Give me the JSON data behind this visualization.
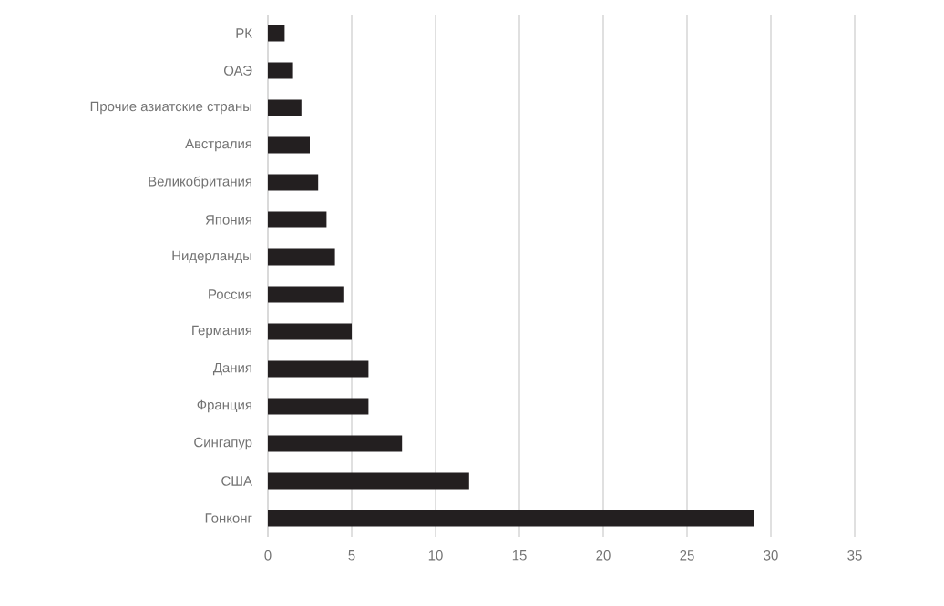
{
  "chart_data": {
    "type": "bar",
    "orientation": "horizontal",
    "categories": [
      "РК",
      "ОАЭ",
      "Прочие азиатские страны",
      "Австралия",
      "Великобритания",
      "Япония",
      "Нидерланды",
      "Россия",
      "Германия",
      "Дания",
      "Франция",
      "Сингапур",
      "США",
      "Гонконг"
    ],
    "values": [
      1,
      1.5,
      2,
      2.5,
      3,
      3.5,
      4,
      4.5,
      5,
      6,
      6,
      8,
      12,
      29
    ],
    "color": "#231f20",
    "xlim": [
      0,
      35
    ],
    "xticks": [
      0,
      5,
      10,
      15,
      20,
      25,
      30,
      35
    ],
    "grid": "x"
  }
}
